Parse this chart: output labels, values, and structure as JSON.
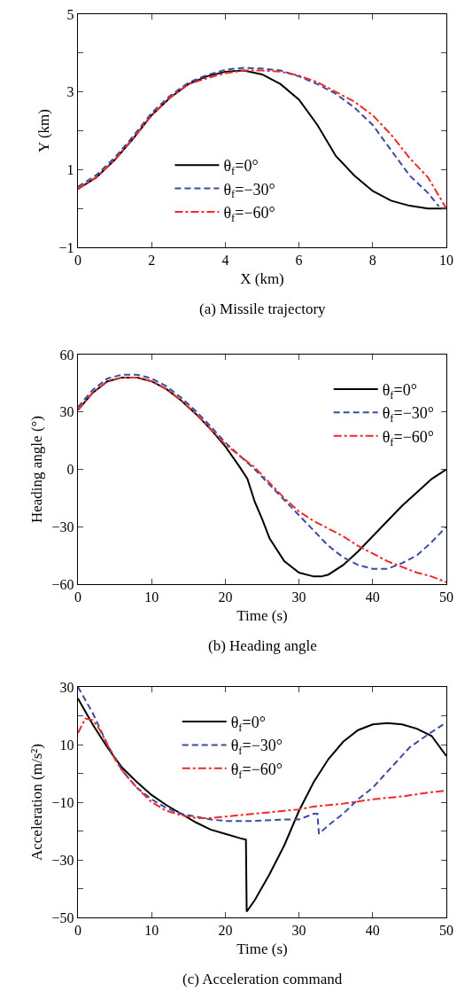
{
  "chart_data": [
    {
      "type": "line",
      "xlabel": "X (km)",
      "ylabel": "Y (km)",
      "annotations": [
        "(a) Missile trajectory"
      ],
      "xlim": [
        0,
        10
      ],
      "xticks": [
        0,
        2,
        4,
        6,
        8,
        10
      ],
      "ylim": [
        -1,
        5
      ],
      "yticks": [
        -1,
        {
          "value": 0,
          "label": null
        },
        1,
        {
          "value": 2,
          "label": null
        },
        3,
        {
          "value": 4,
          "label": null
        },
        5
      ],
      "grid": false,
      "legend": "bottom center",
      "marker": "none",
      "series": [
        {
          "name": "θ$_{f}$=0°",
          "color": "#000000",
          "line_style": "solid",
          "x": [
            0,
            0.5,
            1,
            1.5,
            2,
            2.5,
            3,
            3.5,
            4,
            4.5,
            5,
            5.5,
            6,
            6.5,
            7,
            7.5,
            8,
            8.5,
            9,
            9.5,
            10
          ],
          "values": [
            0.5,
            0.8,
            1.25,
            1.8,
            2.4,
            2.85,
            3.2,
            3.4,
            3.52,
            3.55,
            3.45,
            3.2,
            2.8,
            2.15,
            1.35,
            0.85,
            0.45,
            0.2,
            0.07,
            0,
            0
          ]
        },
        {
          "name": "θ$_{f}$=−30°",
          "color": "#3a4ba0",
          "line_style": "dashed",
          "x": [
            0,
            0.5,
            1,
            1.5,
            2,
            2.5,
            3,
            3.5,
            4,
            4.5,
            5,
            5.5,
            6,
            6.5,
            7,
            7.5,
            8,
            8.5,
            9,
            9.5,
            9.8
          ],
          "values": [
            0.56,
            0.86,
            1.31,
            1.86,
            2.46,
            2.9,
            3.24,
            3.43,
            3.57,
            3.62,
            3.6,
            3.55,
            3.4,
            3.2,
            2.95,
            2.6,
            2.15,
            1.5,
            0.85,
            0.4,
            0.05
          ]
        },
        {
          "name": "θ$_{f}$=−60°",
          "color": "#ee2a2a",
          "line_style": "dashdot",
          "x": [
            0,
            0.5,
            1,
            1.5,
            2,
            2.5,
            3,
            3.5,
            4,
            4.5,
            5,
            5.5,
            6,
            6.5,
            7,
            7.5,
            8,
            8.5,
            9,
            9.5,
            9.75,
            10
          ],
          "values": [
            0.5,
            0.8,
            1.25,
            1.8,
            2.4,
            2.85,
            3.2,
            3.35,
            3.48,
            3.55,
            3.55,
            3.52,
            3.42,
            3.25,
            3.0,
            2.75,
            2.4,
            1.9,
            1.3,
            0.8,
            0.4,
            0
          ]
        }
      ]
    },
    {
      "type": "line",
      "xlabel": "Time (s)",
      "ylabel": "Heading angle (°)",
      "annotations": [
        "(b) Heading angle"
      ],
      "xlim": [
        0,
        50
      ],
      "xticks": [
        0,
        10,
        20,
        30,
        40,
        50
      ],
      "ylim": [
        -60,
        60
      ],
      "yticks": [
        -60,
        -30,
        0,
        30,
        60
      ],
      "grid": false,
      "legend": "top right",
      "marker": "none",
      "series": [
        {
          "name": "θ$_{f}$=0°",
          "color": "#000000",
          "line_style": "solid",
          "x": [
            0,
            2,
            4,
            6,
            8,
            10,
            12,
            14,
            16,
            18,
            20,
            22,
            23,
            24,
            25,
            26,
            28,
            30,
            32,
            33,
            34,
            36,
            38,
            40,
            42,
            44,
            46,
            48,
            50
          ],
          "values": [
            31,
            40,
            46,
            48,
            48,
            46,
            42,
            36,
            29,
            21,
            12,
            1,
            -5,
            -17,
            -26,
            -36,
            -48,
            -54,
            -56,
            -56,
            -55,
            -50,
            -43,
            -35,
            -27,
            -19,
            -12,
            -5,
            0
          ]
        },
        {
          "name": "θ$_{f}$=−30°",
          "color": "#3a4ba0",
          "line_style": "dashed",
          "x": [
            0,
            2,
            4,
            6,
            8,
            10,
            12,
            14,
            16,
            18,
            20,
            22,
            24,
            26,
            28,
            30,
            32,
            34,
            36,
            38,
            40,
            42,
            44,
            46,
            48,
            50
          ],
          "values": [
            32.5,
            41.5,
            47.5,
            49.5,
            49.5,
            47.5,
            43.5,
            37.5,
            30.5,
            22.5,
            14,
            7,
            0,
            -8,
            -16,
            -24,
            -32,
            -40,
            -46,
            -50,
            -52,
            -52,
            -49,
            -45,
            -38,
            -30
          ]
        },
        {
          "name": "θ$_{f}$=−60°",
          "color": "#ee2a2a",
          "line_style": "dashdot",
          "x": [
            0,
            2,
            4,
            6,
            8,
            10,
            12,
            14,
            16,
            18,
            20,
            22,
            24,
            26,
            28,
            30,
            32,
            34,
            36,
            38,
            40,
            42,
            44,
            46,
            48,
            50
          ],
          "values": [
            31,
            40,
            46,
            48,
            48,
            46,
            42,
            36,
            29,
            21,
            13,
            7,
            1,
            -7,
            -15,
            -22,
            -27,
            -31,
            -35,
            -40,
            -44,
            -48,
            -51,
            -54,
            -56,
            -59
          ]
        }
      ]
    },
    {
      "type": "line",
      "xlabel": "Time (s)",
      "ylabel": "Acceleration (m/s²)",
      "annotations": [
        "(c) Acceleration command"
      ],
      "xlim": [
        0,
        50
      ],
      "xticks": [
        0,
        10,
        20,
        30,
        40,
        50
      ],
      "ylim": [
        -50,
        30
      ],
      "yticks": [
        -50,
        {
          "value": -40,
          "label": null
        },
        -30,
        {
          "value": -20,
          "label": null
        },
        -10,
        {
          "value": 0,
          "label": null
        },
        10,
        {
          "value": 20,
          "label": null
        },
        30
      ],
      "grid": false,
      "legend": "top center",
      "marker": "none",
      "series": [
        {
          "name": "θ$_{f}$=0°",
          "color": "#000000",
          "line_style": "solid",
          "x": [
            0,
            2,
            4,
            6,
            8,
            10,
            12,
            14,
            16,
            18,
            20,
            22,
            22.8,
            22.9,
            24,
            26,
            28,
            30,
            32,
            34,
            36,
            38,
            40,
            42,
            44,
            46,
            48,
            50
          ],
          "values": [
            26,
            17,
            9,
            2,
            -3,
            -7.5,
            -11,
            -14,
            -17,
            -19.5,
            -21,
            -22.5,
            -23,
            -48,
            -44,
            -35,
            -25,
            -13,
            -3,
            5,
            11,
            15,
            17,
            17.5,
            17,
            15.5,
            13,
            6
          ]
        },
        {
          "name": "θ$_{f}$=−30°",
          "color": "#3a4ba0",
          "line_style": "dashed",
          "x": [
            0,
            2,
            4,
            6,
            8,
            10,
            12,
            14,
            16,
            18,
            20,
            24,
            28,
            30,
            32,
            32.5,
            32.7,
            34,
            36,
            38,
            40,
            42.5,
            45,
            47.5,
            50
          ],
          "values": [
            30,
            21,
            10,
            1,
            -5,
            -9,
            -12,
            -14,
            -15,
            -16,
            -16.5,
            -16.5,
            -16,
            -16,
            -14,
            -14,
            -21,
            -18,
            -14,
            -9,
            -5,
            2,
            9,
            13.5,
            17.7
          ]
        },
        {
          "name": "θ$_{f}$=−60°",
          "color": "#ee2a2a",
          "line_style": "dashdot",
          "x": [
            0,
            1,
            2,
            3,
            4,
            5,
            6,
            8,
            10,
            12,
            14,
            16,
            18,
            20,
            22,
            24,
            26,
            28,
            30,
            32,
            34,
            36,
            40,
            44,
            48,
            50
          ],
          "values": [
            14,
            19,
            18.5,
            15,
            10,
            5,
            1,
            -5,
            -10,
            -13,
            -14.5,
            -15.5,
            -15.5,
            -15,
            -14.5,
            -14,
            -13.5,
            -13,
            -12.5,
            -11.5,
            -11,
            -10.5,
            -9,
            -8,
            -6.5,
            -6
          ]
        }
      ]
    }
  ]
}
